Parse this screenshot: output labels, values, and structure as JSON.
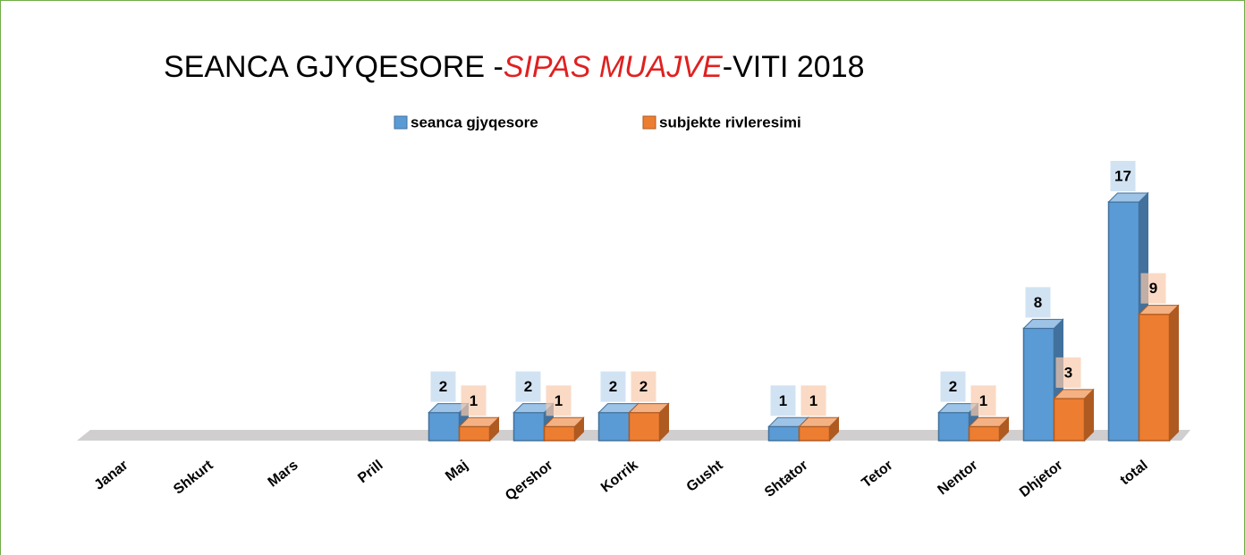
{
  "chart_data": {
    "type": "bar3d",
    "title": [
      "SEANCA GJYQESORE -",
      "SIPAS MUAJVE",
      "-VITI 2018"
    ],
    "categories": [
      "Janar",
      "Shkurt",
      "Mars",
      "Prill",
      "Maj",
      "Qershor",
      "Korrik",
      "Gusht",
      "Shtator",
      "Tetor",
      "Nentor",
      "Dhjetor",
      "total"
    ],
    "series": [
      {
        "name": "seanca gjyqesore",
        "color": "#5b9bd5",
        "values": [
          null,
          null,
          null,
          null,
          2,
          2,
          2,
          null,
          1,
          null,
          2,
          8,
          17
        ]
      },
      {
        "name": "subjekte rivleresimi",
        "color": "#ed7d31",
        "values": [
          null,
          null,
          null,
          null,
          1,
          1,
          2,
          null,
          1,
          null,
          1,
          3,
          9
        ]
      }
    ],
    "legend": "top"
  }
}
